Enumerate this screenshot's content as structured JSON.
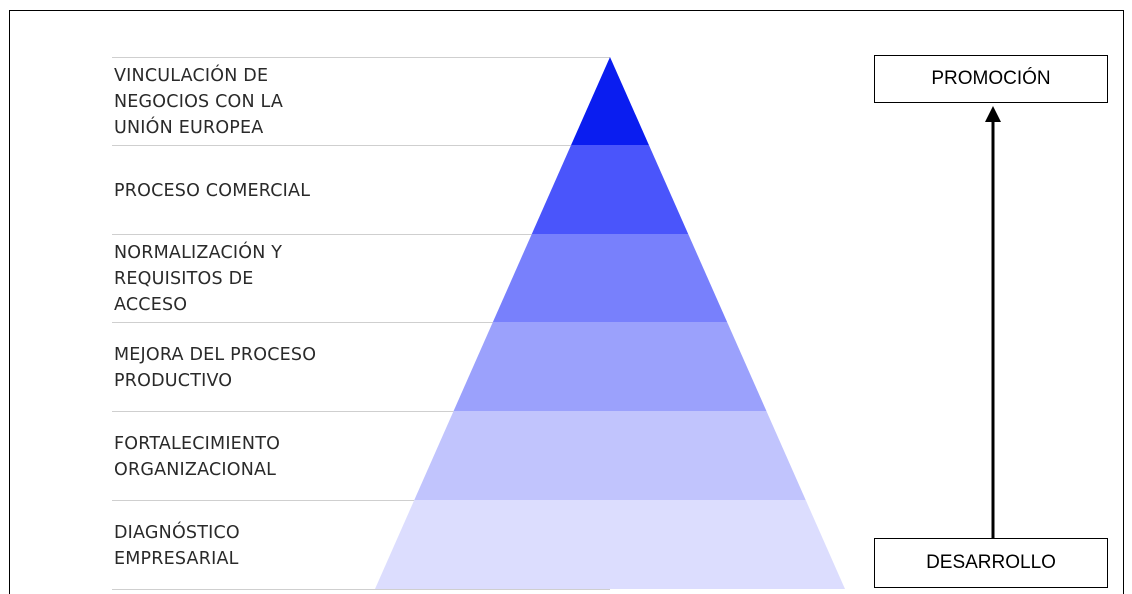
{
  "levels": [
    {
      "label": "VINCULACIÓN DE\nNEGOCIOS CON LA\nUNIÓN EUROPEA",
      "color": "#0a1df0"
    },
    {
      "label": "PROCESO COMERCIAL",
      "color": "#4a55fb"
    },
    {
      "label": "NORMALIZACIÓN Y\nREQUISITOS DE\nACCESO",
      "color": "#7880fc"
    },
    {
      "label": "MEJORA DEL PROCESO\nPRODUCTIVO",
      "color": "#9ba1fc"
    },
    {
      "label": "FORTALECIMIENTO\nORGANIZACIONAL",
      "color": "#c1c4fd"
    },
    {
      "label": "DIAGNÓSTICO\nEMPRESARIAL",
      "color": "#dcddfe"
    }
  ],
  "axis": {
    "top_label": "PROMOCIÓN",
    "bottom_label": "DESARROLLO"
  }
}
